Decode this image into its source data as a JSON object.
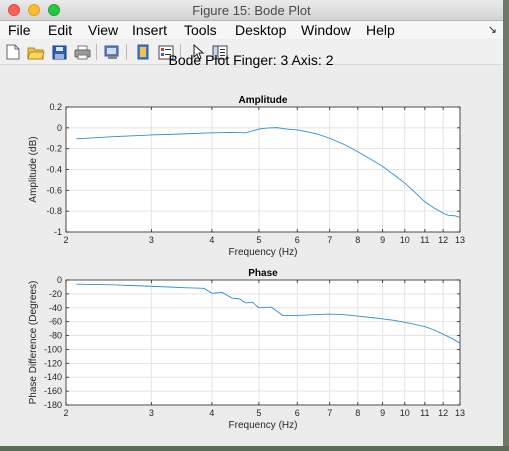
{
  "window": {
    "title": "Figure 15: Bode Plot",
    "menus": [
      "File",
      "Edit",
      "View",
      "Insert",
      "Tools",
      "Desktop",
      "Window",
      "Help"
    ],
    "menu_overflow_glyph": "↘",
    "toolbar_icons": [
      "new-figure-icon",
      "open-file-icon",
      "save-icon",
      "print-icon",
      "print-preview-icon",
      "link-plot-icon",
      "insert-colorbar-icon",
      "insert-legend-icon",
      "select-pointer-icon",
      "property-editor-icon"
    ]
  },
  "figure": {
    "suptitle": "Bode Plot Finger: 3 Axis: 2"
  },
  "colors": {
    "line": "#2f8fd1",
    "grid": "#e3e3e3",
    "axes_bg": "#ffffff",
    "figure_bg": "#ececec"
  },
  "chart_data": [
    {
      "type": "line",
      "title": "Amplitude",
      "xlabel": "Frequency (Hz)",
      "ylabel": "Amplitude (dB)",
      "xscale": "log",
      "xlim": [
        2,
        13
      ],
      "ylim": [
        -1,
        0.2
      ],
      "xticks": [
        2,
        3,
        4,
        5,
        6,
        7,
        8,
        9,
        10,
        11,
        12,
        13
      ],
      "yticks": [
        -1,
        -0.8,
        -0.6,
        -0.4,
        -0.2,
        0,
        0.2
      ],
      "ytick_labels": [
        "-1",
        "-0.8",
        "-0.6",
        "-0.4",
        "-0.2",
        "0",
        "0.2"
      ],
      "grid": true,
      "series": [
        {
          "x": [
            2.1,
            2.5,
            3,
            3.5,
            4,
            4.4,
            4.7,
            4.85,
            5.0,
            5.2,
            5.45,
            5.7,
            6.0,
            6.3,
            6.6,
            7.0,
            7.5,
            8.0,
            8.5,
            9.0,
            9.5,
            10.0,
            10.5,
            11.0,
            11.5,
            12.0,
            12.3,
            12.7,
            13.0
          ],
          "y": [
            -0.105,
            -0.085,
            -0.068,
            -0.058,
            -0.048,
            -0.044,
            -0.048,
            -0.03,
            -0.012,
            -0.002,
            0.002,
            -0.012,
            -0.02,
            -0.038,
            -0.06,
            -0.1,
            -0.16,
            -0.23,
            -0.3,
            -0.37,
            -0.45,
            -0.53,
            -0.62,
            -0.71,
            -0.77,
            -0.82,
            -0.84,
            -0.845,
            -0.86
          ]
        }
      ]
    },
    {
      "type": "line",
      "title": "Phase",
      "xlabel": "Frequency (Hz)",
      "ylabel": "Phase Difference (Degrees)",
      "xscale": "log",
      "xlim": [
        2,
        13
      ],
      "ylim": [
        -180,
        0
      ],
      "xticks": [
        2,
        3,
        4,
        5,
        6,
        7,
        8,
        9,
        10,
        11,
        12,
        13
      ],
      "yticks": [
        0,
        -20,
        -40,
        -60,
        -80,
        -100,
        -120,
        -140,
        -160,
        -180
      ],
      "ytick_labels": [
        "0",
        "-20",
        "-40",
        "-60",
        "-80",
        "-100",
        "-120",
        "-140",
        "-160",
        "-180"
      ],
      "grid": true,
      "series": [
        {
          "x": [
            2.1,
            2.5,
            3.0,
            3.5,
            3.85,
            4.0,
            4.2,
            4.4,
            4.55,
            4.7,
            4.85,
            5.0,
            5.3,
            5.6,
            6.0,
            6.5,
            7.0,
            7.5,
            8.0,
            8.5,
            9.0,
            9.5,
            10.0,
            10.5,
            11.0,
            11.5,
            12.0,
            12.5,
            13.0
          ],
          "y": [
            -6,
            -7,
            -9,
            -11,
            -12,
            -19,
            -18,
            -26,
            -27,
            -33,
            -32,
            -40,
            -39,
            -51,
            -51,
            -50,
            -49,
            -50,
            -52,
            -54,
            -56,
            -58,
            -61,
            -64,
            -67,
            -72,
            -78,
            -84,
            -91
          ]
        }
      ]
    }
  ]
}
